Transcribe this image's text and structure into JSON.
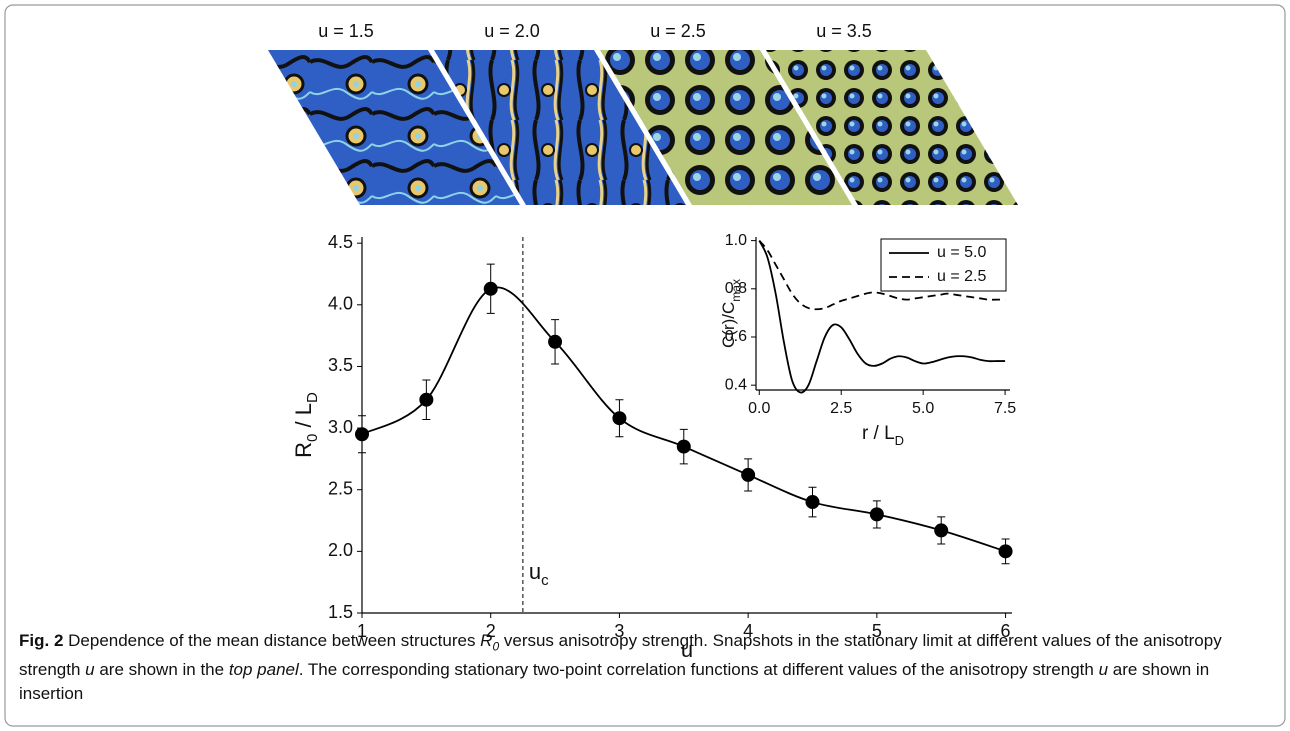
{
  "snapshots": [
    {
      "label": "u = 1.5"
    },
    {
      "label": "u = 2.0"
    },
    {
      "label": "u = 2.5"
    },
    {
      "label": "u = 3.5"
    }
  ],
  "chart_data": [
    {
      "type": "line",
      "xlabel": "u",
      "ylabel": [
        {
          "text": "R"
        },
        {
          "text": "0",
          "sub": true
        },
        {
          "text": " / L"
        },
        {
          "text": "D",
          "sub": true
        }
      ],
      "x": [
        1,
        1.5,
        2,
        2.5,
        3,
        3.5,
        4,
        4.5,
        5,
        5.5,
        6
      ],
      "series": [
        {
          "color": "#000000",
          "smooth": true,
          "marker": true,
          "linestyle": "solid",
          "values": [
            2.95,
            3.23,
            4.13,
            3.7,
            3.08,
            2.85,
            2.62,
            2.4,
            2.3,
            2.17,
            2.0
          ],
          "errors": [
            0.15,
            0.16,
            0.2,
            0.18,
            0.15,
            0.14,
            0.13,
            0.12,
            0.11,
            0.11,
            0.1
          ]
        }
      ],
      "xlim": [
        1,
        6.05
      ],
      "ylim": [
        1.5,
        4.55
      ],
      "xticks": [
        1,
        2,
        3,
        4,
        5,
        6
      ],
      "yticks": [
        1.5,
        {
          "value": 2,
          "label": "2.0"
        },
        2.5,
        {
          "value": 3,
          "label": "3.0"
        },
        3.5,
        {
          "value": 4,
          "label": "4.0"
        },
        4.5
      ],
      "annotation": {
        "x": 2.25,
        "text": [
          {
            "text": "u"
          },
          {
            "text": "c",
            "sub": true
          }
        ]
      }
    },
    {
      "type": "line",
      "xlabel": [
        {
          "text": "r / L"
        },
        {
          "text": "D",
          "sub": true
        }
      ],
      "ylabel": [
        {
          "text": "C(r)/C"
        },
        {
          "text": "max",
          "sub": true
        }
      ],
      "legend": "upper right",
      "x": [
        0,
        0.25,
        0.5,
        0.75,
        1,
        1.25,
        1.5,
        1.75,
        2,
        2.25,
        2.5,
        2.75,
        3,
        3.25,
        3.5,
        3.75,
        4,
        4.25,
        4.5,
        4.75,
        5,
        5.25,
        5.5,
        5.75,
        6,
        6.25,
        6.5,
        6.75,
        7,
        7.25,
        7.5
      ],
      "series": [
        {
          "name": "u = 5.0",
          "color": "#000000",
          "smooth": true,
          "linestyle": "solid",
          "values": [
            1.0,
            0.93,
            0.78,
            0.58,
            0.42,
            0.37,
            0.4,
            0.5,
            0.6,
            0.65,
            0.64,
            0.59,
            0.53,
            0.49,
            0.48,
            0.49,
            0.51,
            0.52,
            0.515,
            0.5,
            0.49,
            0.495,
            0.505,
            0.515,
            0.52,
            0.52,
            0.515,
            0.505,
            0.5,
            0.5,
            0.5
          ]
        },
        {
          "name": "u = 2.5",
          "color": "#000000",
          "smooth": true,
          "linestyle": "dashed",
          "values": [
            1.0,
            0.96,
            0.9,
            0.84,
            0.78,
            0.74,
            0.72,
            0.715,
            0.72,
            0.735,
            0.75,
            0.76,
            0.77,
            0.78,
            0.785,
            0.78,
            0.77,
            0.76,
            0.755,
            0.76,
            0.765,
            0.77,
            0.775,
            0.78,
            0.775,
            0.77,
            0.765,
            0.76,
            0.755,
            0.755,
            0.755
          ]
        }
      ],
      "xlim": [
        -0.1,
        7.65
      ],
      "ylim": [
        0.38,
        1.015
      ],
      "xticks": [
        {
          "value": 0,
          "label": "0.0"
        },
        2.5,
        {
          "value": 5,
          "label": "5.0"
        },
        7.5
      ],
      "yticks": [
        0.4,
        0.6,
        0.8,
        {
          "value": 1,
          "label": "1.0"
        }
      ]
    }
  ],
  "caption": [
    {
      "text": "Fig. 2",
      "style": "bold"
    },
    {
      "text": " Dependence of the mean distance between structures "
    },
    {
      "text": "R",
      "style": "italic"
    },
    {
      "text": "0",
      "style": "sub"
    },
    {
      "text": " versus anisotropy strength. Snapshots in the stationary limit at different values of the anisotropy strength "
    },
    {
      "text": "u",
      "style": "italic"
    },
    {
      "text": " are shown in the "
    },
    {
      "text": "top panel",
      "style": "italic"
    },
    {
      "text": ". The corresponding stationary two-point correlation functions at different values of the anisotropy strength "
    },
    {
      "text": "u",
      "style": "italic"
    },
    {
      "text": " are shown in insertion"
    }
  ]
}
